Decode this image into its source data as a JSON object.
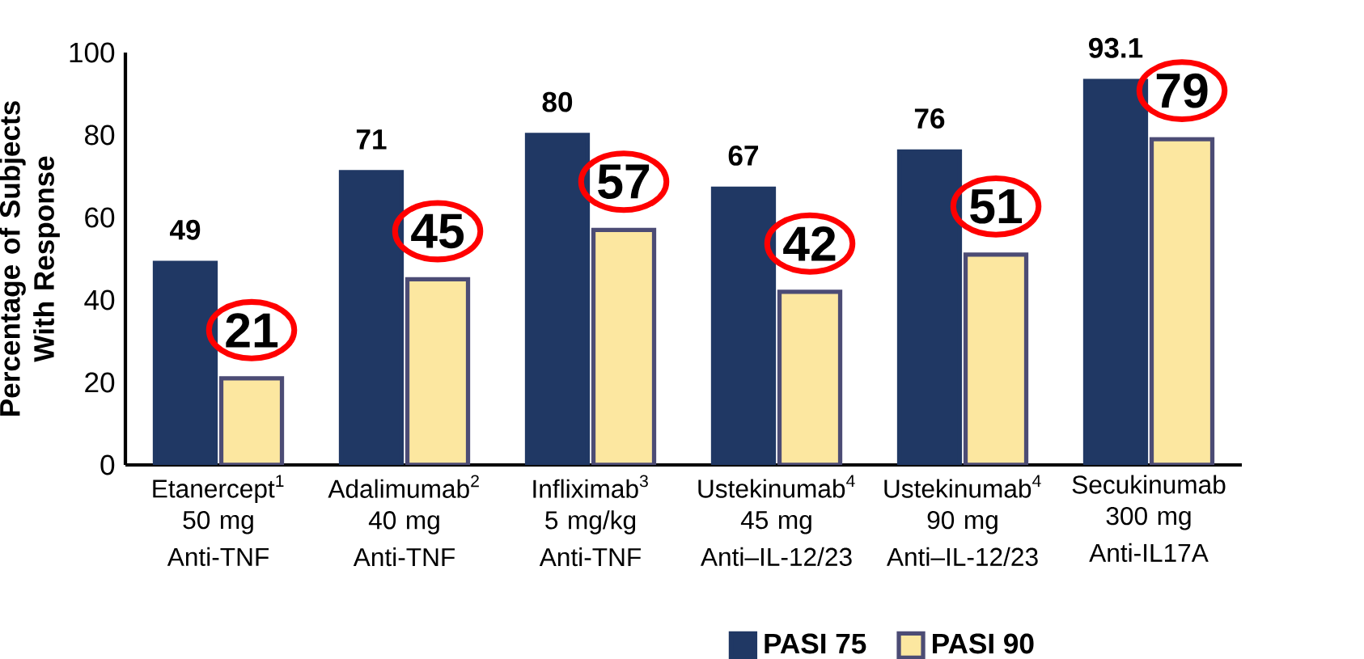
{
  "chart_data": {
    "type": "bar",
    "ylabel": "Percentage of Subjects With Response",
    "categories": [
      "Etanercept$^{1}$ 50 mg",
      "Adalimumab$^{2}$ 40 mg",
      "Infliximab$^{3}$ 5 mg/kg",
      "Ustekinumab$^{4}$ 45 mg",
      "Ustekinumab$^{4}$ 90 mg",
      "Secukinumab 300 mg"
    ],
    "annotations": [
      "Anti-TNF",
      "Anti-TNF",
      "Anti-TNF",
      "Anti–IL-12/23",
      "Anti–IL-12/23",
      "Anti-IL17A"
    ],
    "series": [
      {
        "name": "PASI 75",
        "color": "#203864",
        "values": [
          49,
          71,
          80,
          67,
          76,
          93.1
        ]
      },
      {
        "name": "PASI 90",
        "color": "#fce7a0",
        "values": [
          21,
          45,
          57,
          42,
          51,
          79
        ]
      }
    ],
    "ylim": [
      0,
      100
    ],
    "yticks": [
      0,
      20,
      40,
      60,
      80,
      100
    ],
    "data_labels": true,
    "legend": "bottom",
    "grid": false
  }
}
